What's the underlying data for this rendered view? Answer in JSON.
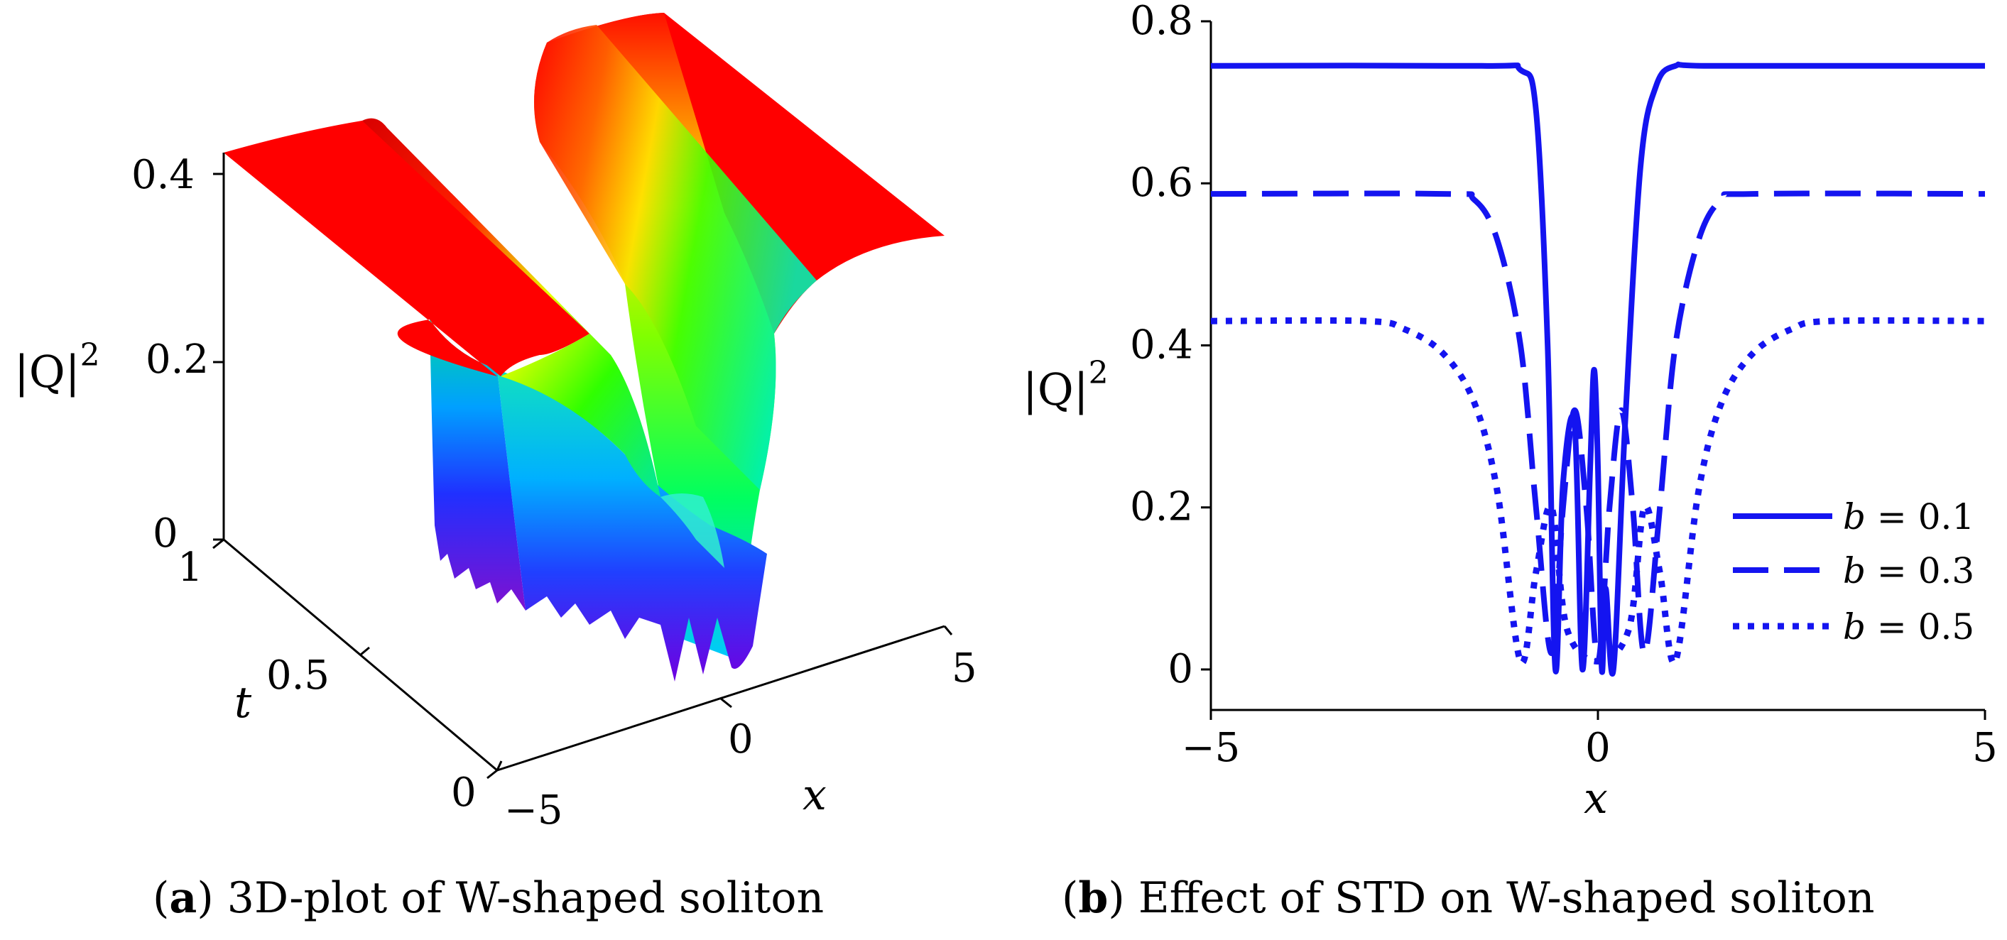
{
  "captions": {
    "a_letter": "a",
    "a_text": "3D-plot of W-shaped soliton",
    "b_letter": "b",
    "b_text": "Effect of STD on W-shaped soliton"
  },
  "chart_data": [
    {
      "type": "surface3d",
      "id": "a",
      "zlabel": "|Q|²",
      "zlabel_main": "|Q|",
      "zlabel_exp": "2",
      "tlabel": "t",
      "xlabel": "x",
      "z_ticks": [
        "0",
        "0.2",
        "0.4"
      ],
      "t_ticks": [
        "0",
        "0.5",
        "1"
      ],
      "x_ticks": [
        "−5",
        "0",
        "5"
      ],
      "x_range": [
        -5,
        5
      ],
      "t_range": [
        0,
        1
      ],
      "z_range": [
        0,
        0.43
      ],
      "plateau_value": 0.43,
      "colormap": [
        "#ff0000",
        "#ffff00",
        "#00ff00",
        "#00ffff",
        "#0000ff",
        "#8000ff"
      ]
    },
    {
      "type": "line",
      "id": "b",
      "xlabel": "x",
      "ylabel": "|Q|²",
      "ylabel_main": "|Q|",
      "ylabel_exp": "2",
      "xlim": [
        -5,
        5
      ],
      "ylim": [
        -0.05,
        0.8
      ],
      "x_ticks": [
        -5,
        0,
        5
      ],
      "x_tick_labels": [
        "−5",
        "0",
        "5"
      ],
      "y_ticks": [
        0,
        0.2,
        0.4,
        0.6,
        0.8
      ],
      "y_tick_labels": [
        "0",
        "0.2",
        "0.4",
        "0.6",
        "0.8"
      ],
      "color": "#1414f0",
      "series": [
        {
          "name": "b = 0.1",
          "param": "b",
          "value": "0.1",
          "dash": "solid",
          "plateau": 0.745,
          "x_min": [
            -0.55,
            0.2
          ],
          "center_peak": 0.37,
          "center_x": -0.05,
          "x": [
            -5,
            -1.5,
            -1.0,
            -0.8,
            -0.65,
            -0.55,
            -0.45,
            -0.3,
            -0.2,
            -0.1,
            -0.05,
            0.0,
            0.05,
            0.1,
            0.2,
            0.35,
            0.55,
            0.75,
            1.0,
            1.5,
            5
          ],
          "y": [
            0.745,
            0.745,
            0.74,
            0.69,
            0.4,
            0.0,
            0.23,
            0.3,
            0.0,
            0.25,
            0.37,
            0.25,
            0.0,
            0.1,
            0.0,
            0.3,
            0.62,
            0.72,
            0.745,
            0.745,
            0.745
          ]
        },
        {
          "name": "b = 0.3",
          "param": "b",
          "value": "0.3",
          "dash": "dashed",
          "plateau": 0.587,
          "center_peak": 0.32,
          "x": [
            -5,
            -2.0,
            -1.6,
            -1.3,
            -1.0,
            -0.8,
            -0.6,
            -0.45,
            -0.3,
            -0.15,
            0.0,
            0.15,
            0.3,
            0.45,
            0.6,
            0.8,
            1.0,
            1.3,
            1.6,
            2.0,
            5
          ],
          "y": [
            0.587,
            0.587,
            0.58,
            0.53,
            0.4,
            0.2,
            0.02,
            0.2,
            0.32,
            0.2,
            0.01,
            0.2,
            0.32,
            0.2,
            0.02,
            0.2,
            0.4,
            0.53,
            0.58,
            0.587,
            0.587
          ]
        },
        {
          "name": "b = 0.5",
          "param": "b",
          "value": "0.5",
          "dash": "dotted",
          "plateau": 0.43,
          "center_peak": 0.2,
          "x": [
            -5,
            -3.0,
            -2.5,
            -2.0,
            -1.6,
            -1.3,
            -1.0,
            -0.8,
            -0.6,
            -0.4,
            0.0,
            0.4,
            0.6,
            0.8,
            1.0,
            1.3,
            1.6,
            2.0,
            2.5,
            3.0,
            5
          ],
          "y": [
            0.43,
            0.43,
            0.42,
            0.39,
            0.33,
            0.22,
            0.01,
            0.12,
            0.2,
            0.05,
            0.01,
            0.05,
            0.2,
            0.12,
            0.01,
            0.22,
            0.33,
            0.39,
            0.42,
            0.43,
            0.43
          ]
        }
      ],
      "legend_position": "right"
    }
  ]
}
